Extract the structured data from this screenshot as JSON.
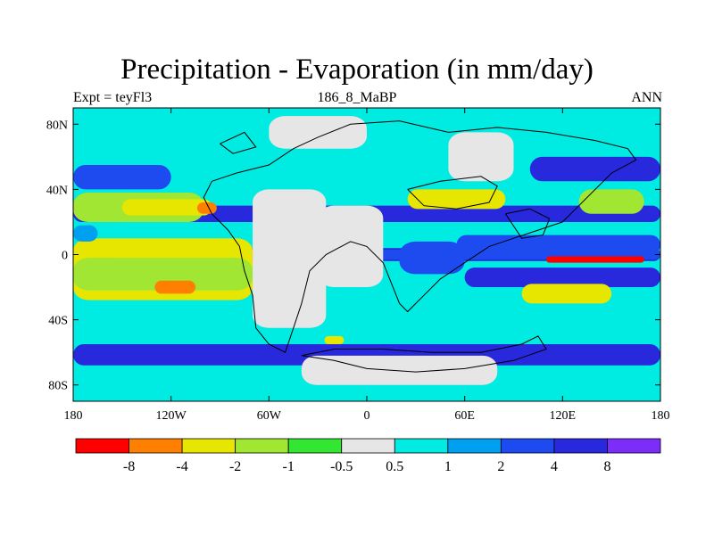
{
  "header": {
    "title": "Precipitation - Evaporation (in mm/day)",
    "left": "Expt = teyFl3",
    "center": "186_8_MaBP",
    "right": "ANN"
  },
  "chart_data": {
    "type": "heatmap",
    "title": "Precipitation - Evaporation (in mm/day)",
    "x_ticks": [
      {
        "value": -180,
        "label": "180"
      },
      {
        "value": -120,
        "label": "120W"
      },
      {
        "value": -60,
        "label": "60W"
      },
      {
        "value": 0,
        "label": "0"
      },
      {
        "value": 60,
        "label": "60E"
      },
      {
        "value": 120,
        "label": "120E"
      },
      {
        "value": 180,
        "label": "180"
      }
    ],
    "y_ticks": [
      {
        "value": 80,
        "label": "80N"
      },
      {
        "value": 40,
        "label": "40N"
      },
      {
        "value": 0,
        "label": "0"
      },
      {
        "value": -40,
        "label": "40S"
      },
      {
        "value": -80,
        "label": "80S"
      }
    ],
    "xlim": [
      -180,
      180
    ],
    "ylim": [
      -90,
      90
    ],
    "colorbar": {
      "levels": [
        "-8",
        "-4",
        "-2",
        "-1",
        "-0.5",
        "0.5",
        "1",
        "2",
        "4",
        "8"
      ],
      "colors": [
        "#ff0000",
        "#ff8000",
        "#e6e600",
        "#a0e632",
        "#32e632",
        "#e6e6e6",
        "#00ebe1",
        "#00a0f0",
        "#1e4bf0",
        "#2828dc",
        "#7d2dfa"
      ]
    },
    "fields": [
      {
        "cls": 9,
        "lon": [
          -180,
          180
        ],
        "lat": [
          20,
          30
        ]
      },
      {
        "cls": 9,
        "lon": [
          -180,
          180
        ],
        "lat": [
          -4,
          4
        ]
      },
      {
        "cls": 9,
        "lon": [
          -180,
          180
        ],
        "lat": [
          -68,
          -55
        ]
      },
      {
        "cls": 9,
        "lon": [
          100,
          180
        ],
        "lat": [
          45,
          60
        ]
      },
      {
        "cls": 8,
        "lon": [
          -180,
          -120
        ],
        "lat": [
          40,
          55
        ]
      },
      {
        "cls": 8,
        "lon": [
          55,
          180
        ],
        "lat": [
          0,
          12
        ]
      },
      {
        "cls": 8,
        "lon": [
          0,
          180
        ],
        "lat": [
          -3,
          3
        ]
      },
      {
        "cls": 9,
        "lon": [
          60,
          180
        ],
        "lat": [
          -20,
          -8
        ]
      },
      {
        "cls": 8,
        "lon": [
          20,
          60
        ],
        "lat": [
          -12,
          8
        ]
      },
      {
        "cls": 2,
        "lon": [
          -180,
          -70
        ],
        "lat": [
          -28,
          10
        ]
      },
      {
        "cls": 3,
        "lon": [
          -180,
          -70
        ],
        "lat": [
          -22,
          -2
        ]
      },
      {
        "cls": 3,
        "lon": [
          -180,
          -100
        ],
        "lat": [
          20,
          38
        ]
      },
      {
        "cls": 2,
        "lon": [
          -150,
          -95
        ],
        "lat": [
          24,
          34
        ]
      },
      {
        "cls": 1,
        "lon": [
          -104,
          -92
        ],
        "lat": [
          25,
          32
        ]
      },
      {
        "cls": 1,
        "lon": [
          -130,
          -105
        ],
        "lat": [
          -24,
          -16
        ]
      },
      {
        "cls": 7,
        "lon": [
          -180,
          -165
        ],
        "lat": [
          8,
          18
        ]
      },
      {
        "cls": 2,
        "lon": [
          25,
          85
        ],
        "lat": [
          28,
          40
        ]
      },
      {
        "cls": 3,
        "lon": [
          130,
          170
        ],
        "lat": [
          25,
          40
        ]
      },
      {
        "cls": 2,
        "lon": [
          95,
          150
        ],
        "lat": [
          -30,
          -18
        ]
      },
      {
        "cls": 0,
        "lon": [
          110,
          170
        ],
        "lat": [
          -5,
          -1
        ]
      },
      {
        "cls": 5,
        "lon": [
          -70,
          -25
        ],
        "lat": [
          -45,
          40
        ]
      },
      {
        "cls": 5,
        "lon": [
          -30,
          10
        ],
        "lat": [
          -20,
          30
        ]
      },
      {
        "cls": 5,
        "lon": [
          50,
          90
        ],
        "lat": [
          45,
          75
        ]
      },
      {
        "cls": 5,
        "lon": [
          -60,
          0
        ],
        "lat": [
          65,
          85
        ]
      },
      {
        "cls": 5,
        "lon": [
          -40,
          80
        ],
        "lat": [
          -80,
          -62
        ]
      },
      {
        "cls": 2,
        "lon": [
          -26,
          -14
        ],
        "lat": [
          -55,
          -50
        ]
      }
    ],
    "coastline": [
      [
        [
          -95,
          45
        ],
        [
          -80,
          50
        ],
        [
          -60,
          55
        ],
        [
          -45,
          65
        ],
        [
          -30,
          72
        ],
        [
          -10,
          80
        ],
        [
          20,
          82
        ],
        [
          50,
          75
        ],
        [
          80,
          78
        ],
        [
          110,
          75
        ],
        [
          140,
          70
        ],
        [
          160,
          65
        ],
        [
          165,
          58
        ],
        [
          150,
          50
        ],
        [
          140,
          40
        ],
        [
          130,
          30
        ],
        [
          120,
          20
        ],
        [
          105,
          15
        ],
        [
          90,
          10
        ],
        [
          75,
          5
        ],
        [
          60,
          -5
        ],
        [
          45,
          -15
        ],
        [
          35,
          -25
        ],
        [
          25,
          -35
        ],
        [
          20,
          -30
        ],
        [
          10,
          -5
        ],
        [
          0,
          5
        ],
        [
          -10,
          8
        ],
        [
          -25,
          0
        ],
        [
          -35,
          -10
        ],
        [
          -40,
          -30
        ],
        [
          -45,
          -45
        ],
        [
          -50,
          -60
        ],
        [
          -60,
          -55
        ],
        [
          -68,
          -45
        ],
        [
          -70,
          -25
        ],
        [
          -75,
          -10
        ],
        [
          -78,
          5
        ],
        [
          -85,
          15
        ],
        [
          -95,
          25
        ],
        [
          -100,
          35
        ],
        [
          -95,
          45
        ]
      ],
      [
        [
          -40,
          -62
        ],
        [
          -20,
          -65
        ],
        [
          0,
          -70
        ],
        [
          30,
          -72
        ],
        [
          60,
          -70
        ],
        [
          90,
          -65
        ],
        [
          110,
          -58
        ],
        [
          105,
          -50
        ],
        [
          95,
          -55
        ],
        [
          70,
          -60
        ],
        [
          40,
          -60
        ],
        [
          10,
          -58
        ],
        [
          -20,
          -58
        ],
        [
          -40,
          -62
        ]
      ],
      [
        [
          25,
          40
        ],
        [
          45,
          45
        ],
        [
          70,
          48
        ],
        [
          80,
          42
        ],
        [
          75,
          32
        ],
        [
          55,
          28
        ],
        [
          35,
          30
        ],
        [
          25,
          40
        ]
      ],
      [
        [
          85,
          25
        ],
        [
          100,
          28
        ],
        [
          112,
          22
        ],
        [
          108,
          12
        ],
        [
          95,
          10
        ],
        [
          85,
          25
        ]
      ],
      [
        [
          -90,
          68
        ],
        [
          -75,
          75
        ],
        [
          -68,
          66
        ],
        [
          -82,
          62
        ],
        [
          -90,
          68
        ]
      ]
    ]
  }
}
